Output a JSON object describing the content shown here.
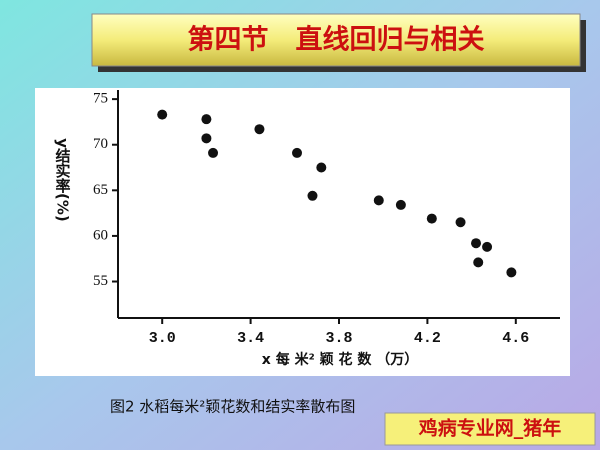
{
  "slide_title": "第四节　直线回归与相关",
  "caption": "图2  水稻每米²颖花数和结实率散布图",
  "watermark": "鸡病专业网_猪年",
  "chart_data": {
    "type": "scatter",
    "xlabel": "x 每 米² 颖 花 数 （万）",
    "ylabel": "y结实率(%)",
    "color": "#111111",
    "x": [
      3.0,
      3.2,
      3.2,
      3.23,
      3.44,
      3.61,
      3.68,
      3.72,
      3.98,
      4.08,
      4.22,
      4.35,
      4.42,
      4.47,
      4.43,
      4.58
    ],
    "y": [
      73.3,
      72.8,
      70.7,
      69.1,
      71.7,
      69.1,
      64.4,
      67.5,
      63.9,
      63.4,
      61.9,
      61.5,
      59.2,
      58.8,
      57.1,
      56.0
    ],
    "xlim": [
      2.8,
      4.8
    ],
    "xticks": [
      {
        "value": 3.0,
        "label": "3.0"
      },
      3.4,
      3.8,
      4.2,
      4.6
    ],
    "ylim": [
      51,
      76
    ],
    "yticks": [
      55,
      60,
      65,
      70,
      75
    ]
  }
}
